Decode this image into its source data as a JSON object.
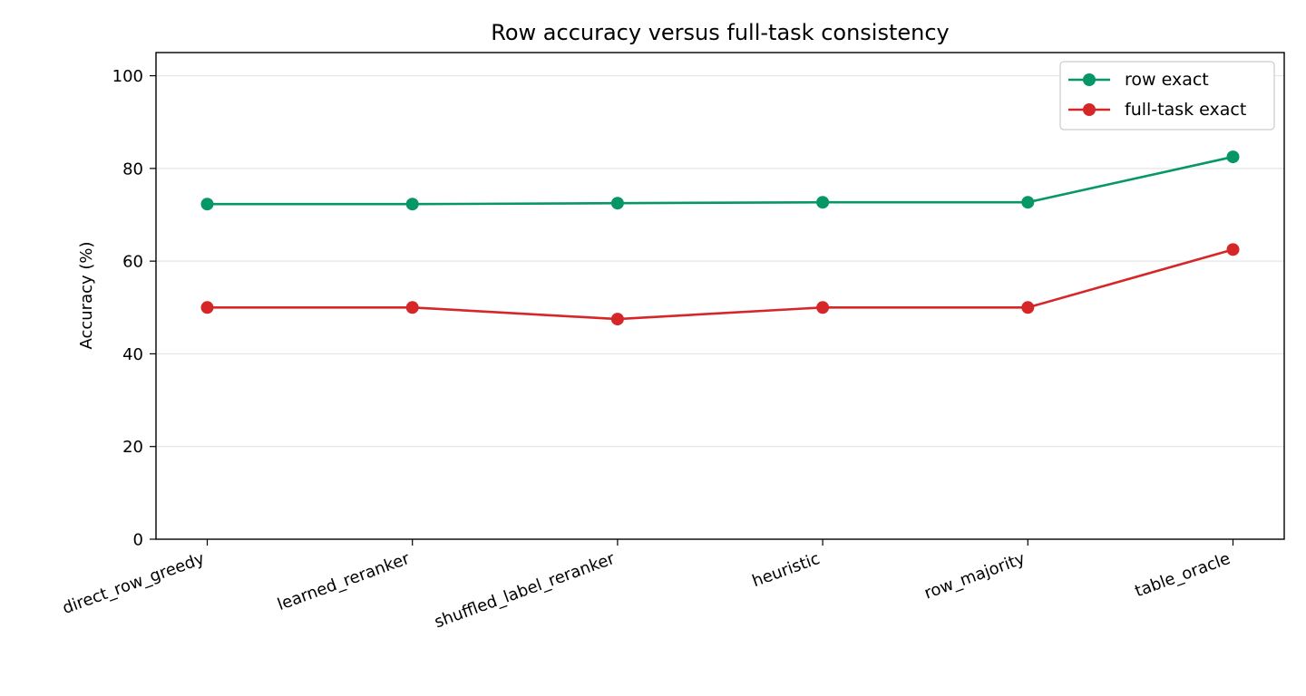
{
  "chart_data": {
    "type": "line",
    "title": "Row accuracy versus full-task consistency",
    "xlabel": "",
    "ylabel": "Accuracy (%)",
    "categories": [
      "direct_row_greedy",
      "learned_reranker",
      "shuffled_label_reranker",
      "heuristic",
      "row_majority",
      "table_oracle"
    ],
    "series": [
      {
        "name": "row exact",
        "color": "#069668",
        "values": [
          72.3,
          72.3,
          72.5,
          72.7,
          72.7,
          82.5
        ]
      },
      {
        "name": "full-task exact",
        "color": "#d62728",
        "values": [
          50.0,
          50.0,
          47.5,
          50.0,
          50.0,
          62.5
        ]
      }
    ],
    "ylim": [
      0,
      105
    ],
    "yticks": [
      0,
      20,
      40,
      60,
      80,
      100
    ],
    "grid": "y",
    "legend": "top-right"
  }
}
